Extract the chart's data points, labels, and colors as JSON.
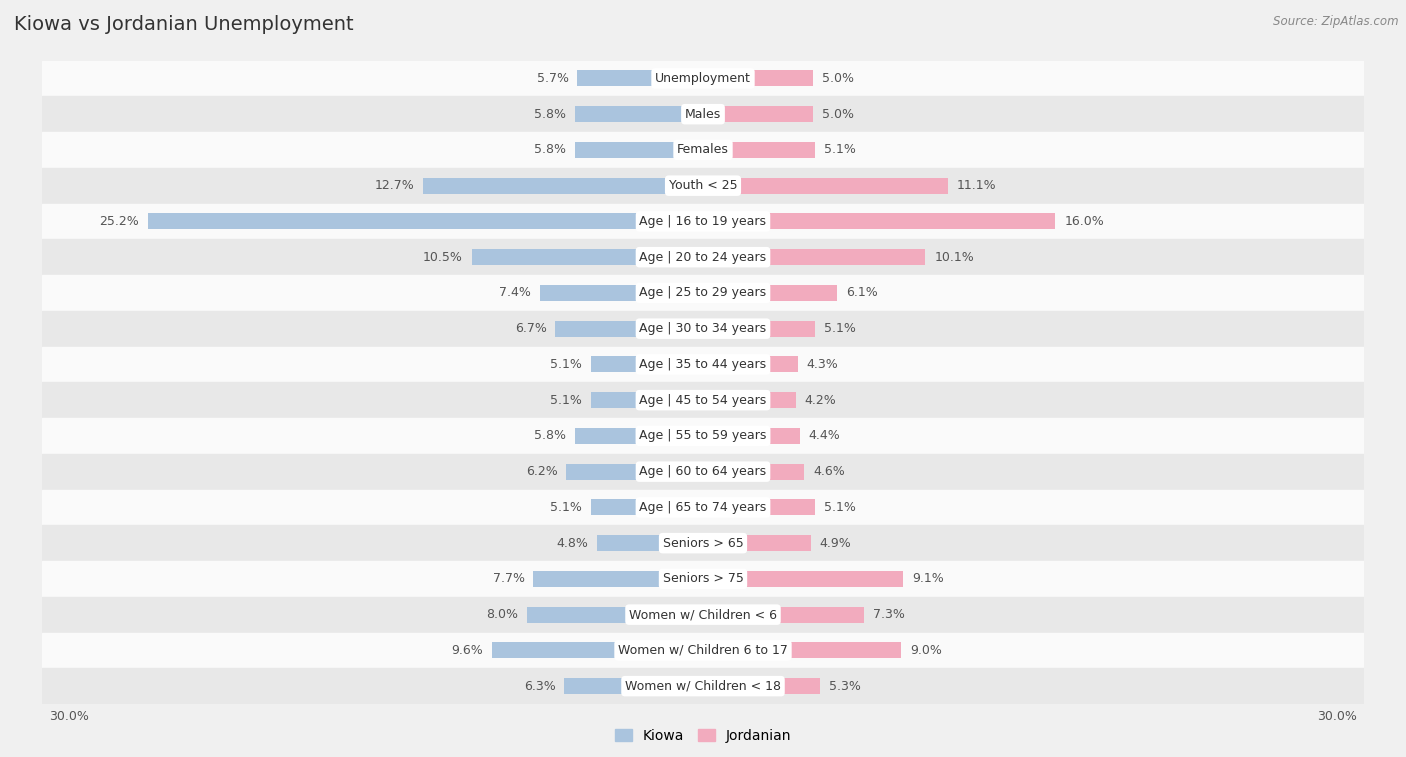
{
  "title": "Kiowa vs Jordanian Unemployment",
  "source": "Source: ZipAtlas.com",
  "categories": [
    "Unemployment",
    "Males",
    "Females",
    "Youth < 25",
    "Age | 16 to 19 years",
    "Age | 20 to 24 years",
    "Age | 25 to 29 years",
    "Age | 30 to 34 years",
    "Age | 35 to 44 years",
    "Age | 45 to 54 years",
    "Age | 55 to 59 years",
    "Age | 60 to 64 years",
    "Age | 65 to 74 years",
    "Seniors > 65",
    "Seniors > 75",
    "Women w/ Children < 6",
    "Women w/ Children 6 to 17",
    "Women w/ Children < 18"
  ],
  "kiowa_values": [
    5.7,
    5.8,
    5.8,
    12.7,
    25.2,
    10.5,
    7.4,
    6.7,
    5.1,
    5.1,
    5.8,
    6.2,
    5.1,
    4.8,
    7.7,
    8.0,
    9.6,
    6.3
  ],
  "jordanian_values": [
    5.0,
    5.0,
    5.1,
    11.1,
    16.0,
    10.1,
    6.1,
    5.1,
    4.3,
    4.2,
    4.4,
    4.6,
    5.1,
    4.9,
    9.1,
    7.3,
    9.0,
    5.3
  ],
  "kiowa_color": "#aac4de",
  "jordanian_color": "#f2abbe",
  "axis_max": 30.0,
  "bg_color": "#f0f0f0",
  "row_bg_light": "#fafafa",
  "row_bg_dark": "#e8e8e8",
  "title_fontsize": 14,
  "label_fontsize": 9,
  "value_fontsize": 9,
  "legend_fontsize": 10,
  "source_fontsize": 8.5
}
